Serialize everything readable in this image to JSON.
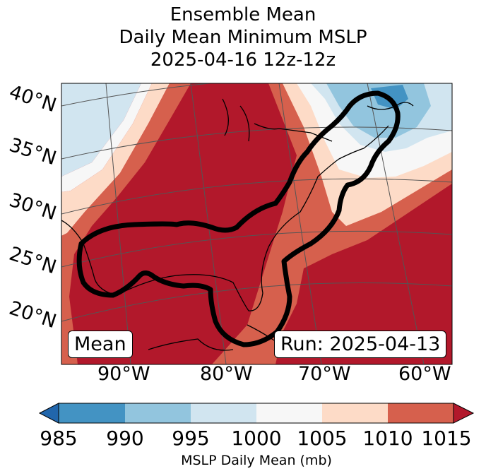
{
  "title": {
    "line1": "Ensemble Mean",
    "line2": "Daily Mean Minimum MSLP",
    "line3": "2025-04-16 12z-12z"
  },
  "map": {
    "lat_labels": [
      "40°N",
      "35°N",
      "30°N",
      "25°N",
      "20°N"
    ],
    "lon_labels": [
      "90°W",
      "80°W",
      "70°W",
      "60°W"
    ],
    "mean_label": "Mean",
    "run_label": "Run: 2025-04-13"
  },
  "colorbar": {
    "ticks": [
      "985",
      "990",
      "995",
      "1000",
      "1005",
      "1010",
      "1015"
    ],
    "label": "MSLP Daily Mean (mb)",
    "colors": [
      "#2166ac",
      "#4393c3",
      "#92c5de",
      "#d1e5f0",
      "#f7f7f7",
      "#fddbc7",
      "#d6604d",
      "#b2182b"
    ]
  }
}
